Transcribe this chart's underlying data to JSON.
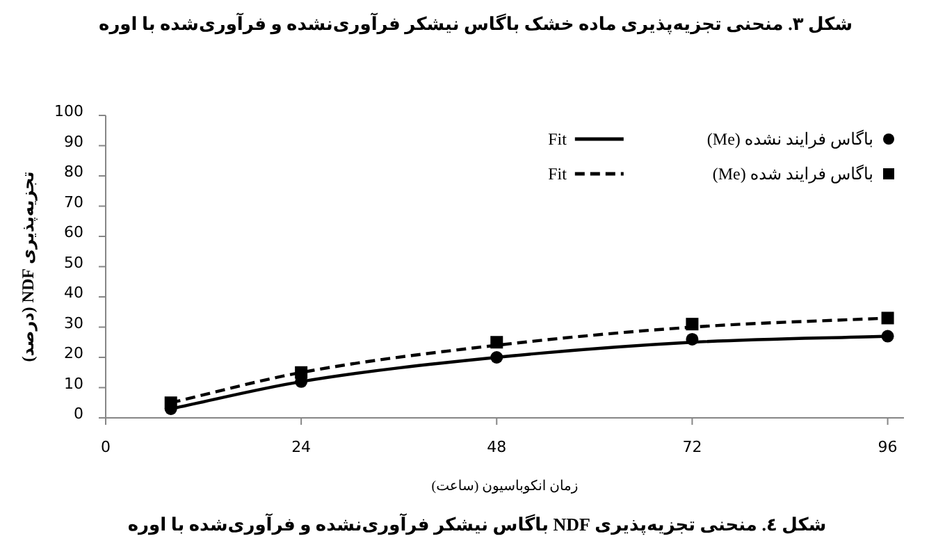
{
  "chart_data": {
    "type": "scatter",
    "title": "شکل ٤. منحنی تجزیه‌پذیری NDF باگاس نیشکر فرآوری‌نشده و فرآوری‌شده با اوره",
    "xlabel": "زمان انکوباسیون (ساعت)",
    "ylabel": "تجزیه‌پذیری NDF (درصد)",
    "annotations": [
      "شکل ۳. منحنی تجزیه‌پذیری ماده خشک باگاس نیشکر فرآوری‌نشده و فرآوری‌شده با اوره"
    ],
    "x": [
      8,
      24,
      48,
      72,
      96
    ],
    "series": [
      {
        "name": "باگاس فرایند نشده (Me)",
        "color": "#000000",
        "marker": "circle",
        "values": [
          3,
          12,
          20,
          26,
          27
        ]
      },
      {
        "name": "Fit",
        "type": "line",
        "color": "#000000",
        "marker": "none",
        "line_style": "solid",
        "values": [
          3,
          12,
          20,
          25,
          27
        ]
      },
      {
        "name": "باگاس فرایند شده (Me)",
        "color": "#000000",
        "marker": "square",
        "values": [
          5,
          15,
          25,
          31,
          33
        ]
      },
      {
        "name": "Fit",
        "type": "line",
        "color": "#000000",
        "marker": "none",
        "line_style": "dashed",
        "values": [
          5,
          15,
          24,
          30,
          33
        ]
      }
    ],
    "xlim": [
      0,
      98
    ],
    "xticks": [
      0,
      24,
      48,
      72,
      96
    ],
    "ylim": [
      0,
      100
    ],
    "yticks": [
      0,
      10,
      20,
      30,
      40,
      50,
      60,
      70,
      80,
      90,
      100
    ],
    "legend": "top right"
  }
}
